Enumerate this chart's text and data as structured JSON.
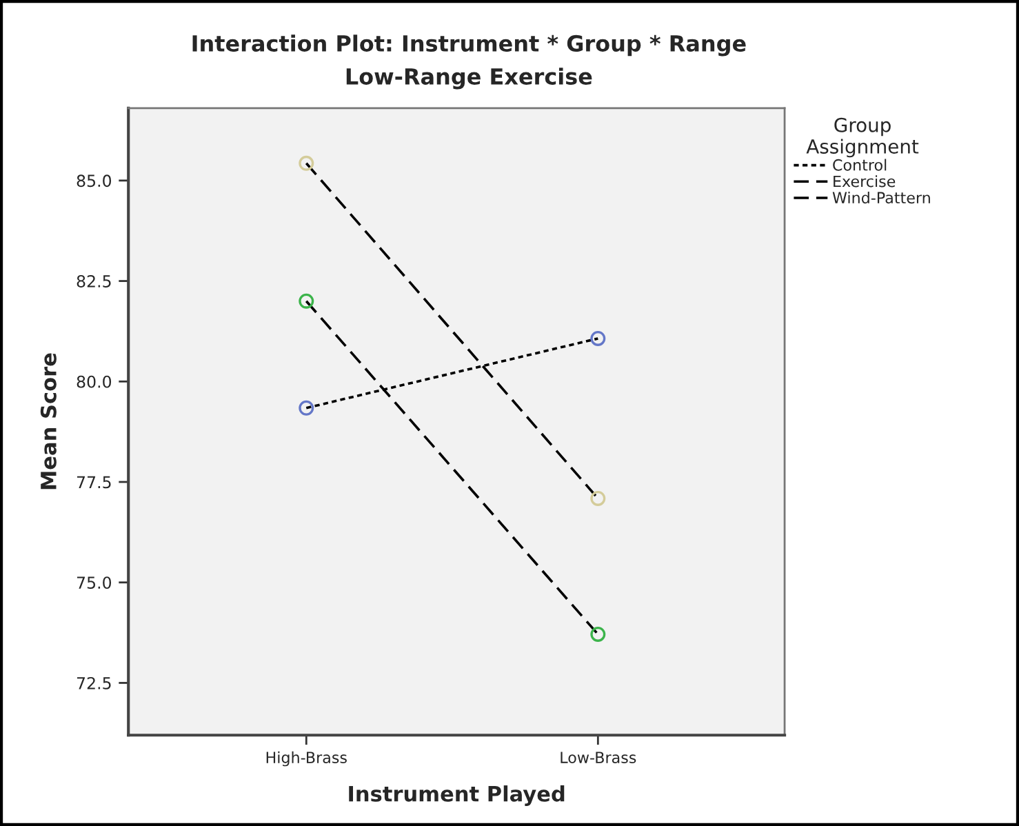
{
  "chart_data": {
    "type": "line",
    "title": "Interaction Plot: Instrument * Group * Range",
    "subtitle": "Low-Range Exercise",
    "xlabel": "Instrument Played",
    "ylabel": "Mean Score",
    "legend_title": "Group\nAssignment",
    "categories": [
      "High-Brass",
      "Low-Brass"
    ],
    "series": [
      {
        "name": "Control",
        "color": "#6477c8",
        "line_style": "dotted",
        "values": [
          79.34,
          81.07
        ]
      },
      {
        "name": "Exercise",
        "color": "#3cb44b",
        "line_style": "dashed",
        "values": [
          82.0,
          73.71
        ]
      },
      {
        "name": "Wind-Pattern",
        "color": "#d4cc9a",
        "line_style": "dashed",
        "values": [
          85.43,
          77.09
        ]
      }
    ],
    "ylim": [
      71.2,
      86.8
    ],
    "yticks": [
      {
        "value": 72.5,
        "label": "72.5"
      },
      {
        "value": 75,
        "label": "75.0"
      },
      {
        "value": 77.5,
        "label": "77.5"
      },
      {
        "value": 80,
        "label": "80.0"
      },
      {
        "value": 82.5,
        "label": "82.5"
      },
      {
        "value": 85,
        "label": "85.0"
      }
    ],
    "marker": "circle",
    "grid": false,
    "legend": "top right"
  }
}
